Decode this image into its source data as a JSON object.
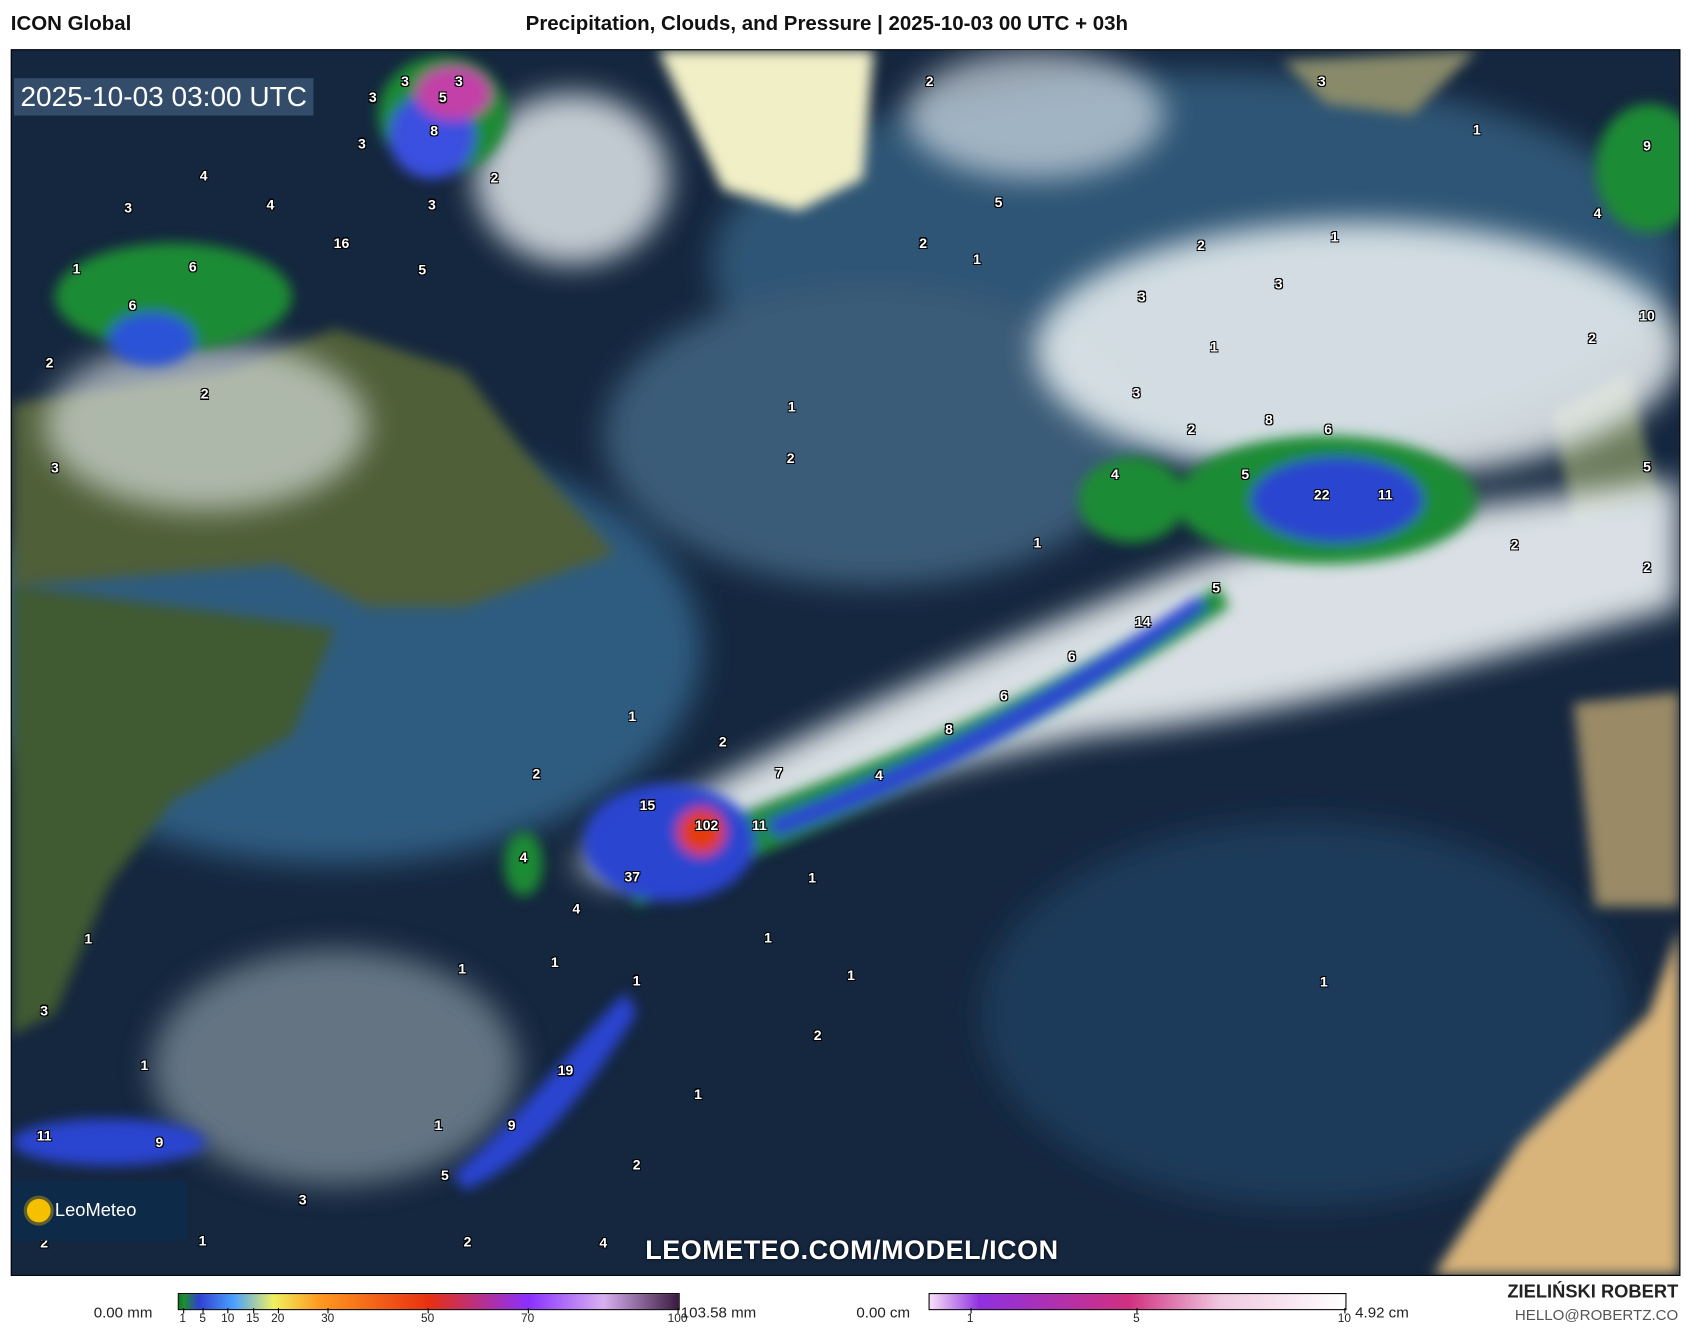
{
  "header": {
    "model": "ICON Global",
    "title": "Precipitation, Clouds, and Pressure | 2025-10-03 00 UTC + 03h"
  },
  "map": {
    "valid_time": "2025-10-03 03:00 UTC",
    "watermark": "LEOMETEO.COM/MODEL/ICON",
    "logo": "LeoMeteo",
    "labels": [
      "3",
      "3",
      "5",
      "3",
      "8",
      "3",
      "4",
      "2",
      "3",
      "4",
      "3",
      "16",
      "6",
      "5",
      "1",
      "6",
      "2",
      "2",
      "3",
      "2",
      "5",
      "2",
      "1",
      "3",
      "1",
      "9",
      "4",
      "1",
      "2",
      "3",
      "3",
      "10",
      "2",
      "1",
      "3",
      "1",
      "2",
      "8",
      "6",
      "2",
      "4",
      "5",
      "22",
      "11",
      "5",
      "1",
      "2",
      "2",
      "5",
      "14",
      "6",
      "6",
      "1",
      "8",
      "2",
      "7",
      "2",
      "4",
      "15",
      "102",
      "11",
      "4",
      "37",
      "1",
      "4",
      "1",
      "1",
      "1",
      "1",
      "1",
      "1",
      "1",
      "3",
      "2",
      "1",
      "19",
      "1",
      "1",
      "9",
      "11",
      "9",
      "2",
      "5",
      "3",
      "4",
      "2",
      "1",
      "2"
    ]
  },
  "legend": {
    "precip": {
      "min": "0.00 mm",
      "max": "103.58 mm",
      "ticks": [
        "1",
        "5",
        "10",
        "15",
        "20",
        "30",
        "50",
        "70",
        "100"
      ]
    },
    "snow": {
      "min": "0.00 cm",
      "max": "4.92 cm",
      "ticks": [
        "1",
        "5",
        "10"
      ]
    }
  },
  "author": {
    "name": "ZIELIŃSKI ROBERT",
    "email": "HELLO@ROBERTZ.CO"
  }
}
